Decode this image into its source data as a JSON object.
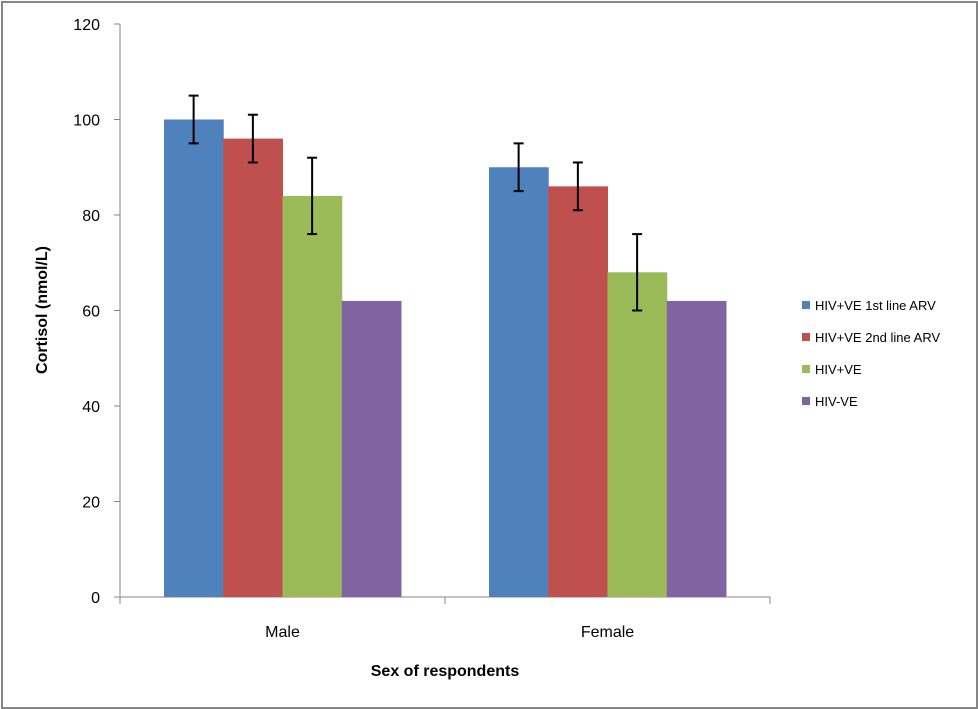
{
  "chart_data": {
    "type": "bar",
    "title": "",
    "xlabel": "Sex of respondents",
    "ylabel": "Cortisol (nmol/L)",
    "ylim": [
      0,
      120
    ],
    "yticks": [
      0,
      20,
      40,
      60,
      80,
      100,
      120
    ],
    "categories": [
      "Male",
      "Female"
    ],
    "grid": false,
    "legend_position": "right",
    "series": [
      {
        "name": "HIV+VE 1st line ARV",
        "color": "#4F81BD",
        "values": [
          100,
          90
        ],
        "error_low": [
          95,
          85
        ],
        "error_high": [
          105,
          95
        ]
      },
      {
        "name": "HIV+VE 2nd line ARV",
        "color": "#C0504D",
        "values": [
          96,
          86
        ],
        "error_low": [
          91,
          81
        ],
        "error_high": [
          101,
          91
        ]
      },
      {
        "name": "HIV+VE",
        "color": "#9BBB59",
        "values": [
          84,
          68
        ],
        "error_low": [
          76,
          60
        ],
        "error_high": [
          92,
          76
        ]
      },
      {
        "name": "HIV-VE",
        "color": "#8064A2",
        "values": [
          62,
          62
        ],
        "error_low": null,
        "error_high": null
      }
    ]
  }
}
